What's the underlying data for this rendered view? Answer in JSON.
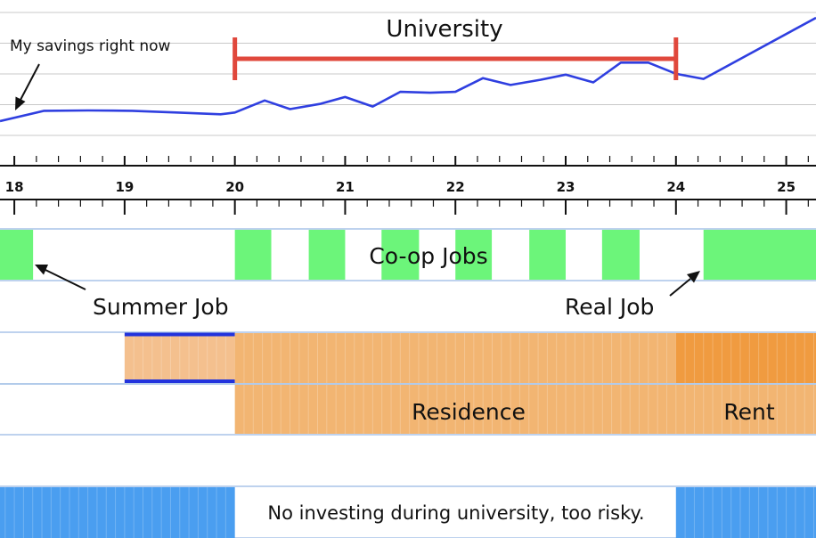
{
  "chart_data": {
    "type": "line",
    "x_axis": {
      "ticks": [
        18,
        19,
        20,
        21,
        22,
        23,
        24,
        25
      ],
      "tick_labels": [
        "18",
        "19",
        "20",
        "21",
        "22",
        "23",
        "24",
        "25"
      ],
      "xlim": [
        17.87,
        25.27
      ],
      "minor_ticks_per_unit": 5
    },
    "savings_series": {
      "x": [
        17.87,
        18.27,
        18.67,
        19.07,
        19.47,
        19.87,
        20.0,
        20.27,
        20.5,
        20.77,
        21.0,
        21.25,
        21.5,
        21.77,
        22.0,
        22.25,
        22.5,
        22.77,
        23.0,
        23.25,
        23.5,
        23.75,
        24.0,
        24.25,
        25.27
      ],
      "y": [
        0.0,
        0.6,
        0.62,
        0.6,
        0.5,
        0.4,
        0.5,
        1.2,
        0.7,
        1.0,
        1.4,
        0.85,
        1.7,
        1.65,
        1.7,
        2.5,
        2.1,
        2.4,
        2.7,
        2.25,
        3.4,
        3.4,
        2.75,
        2.45,
        6.0
      ],
      "color": "#2f3fe0"
    },
    "horizontal_gridlines": 5
  },
  "annotations": {
    "savings_now": "My savings right now",
    "university": "University",
    "summer_job": "Summer Job",
    "real_job": "Real Job"
  },
  "university_bracket": {
    "start": 20.0,
    "end": 24.0,
    "color": "#e0483c"
  },
  "timeline_rows": {
    "jobs": {
      "label": "Co-op Jobs",
      "color": "#6cf57a",
      "periods": [
        [
          17.87,
          18.17
        ],
        [
          20.0,
          20.33
        ],
        [
          20.67,
          21.0
        ],
        [
          21.33,
          21.67
        ],
        [
          22.0,
          22.33
        ],
        [
          22.67,
          23.0
        ],
        [
          23.33,
          23.67
        ],
        [
          24.25,
          25.27
        ]
      ]
    },
    "housing_main": {
      "periods": [
        {
          "start": 19.0,
          "end": 20.0,
          "color": "#f4c08e",
          "outlined": true
        },
        {
          "start": 20.0,
          "end": 24.0,
          "color": "#f2b572"
        },
        {
          "start": 24.0,
          "end": 25.27,
          "color": "#f09b40"
        }
      ],
      "outline_color": "#2233dd"
    },
    "housing_labels": {
      "periods": [
        {
          "start": 20.0,
          "end": 25.27,
          "color": "#f2b572"
        }
      ],
      "residence_label": "Residence",
      "rent_label": "Rent"
    },
    "investing": {
      "label": "No investing during university, too risky.",
      "color": "#4a9ef0",
      "periods": [
        [
          17.87,
          20.0
        ],
        [
          24.0,
          25.27
        ]
      ]
    }
  },
  "colors": {
    "row_border": "#a8c4e8",
    "cell_divider": "rgba(255,255,255,0.22)",
    "gridline": "#c8c8c8"
  }
}
